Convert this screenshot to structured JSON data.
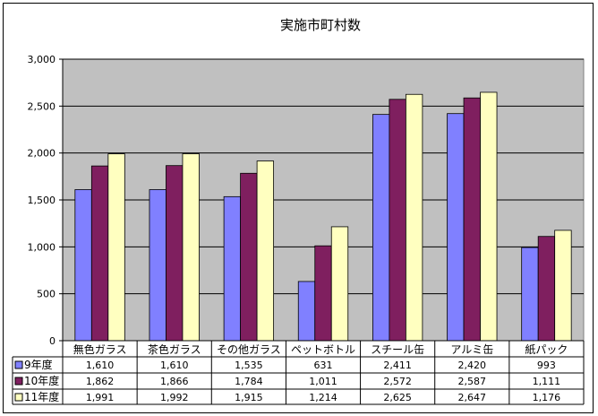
{
  "chart_data": {
    "type": "bar",
    "title": "実施市町村数",
    "categories": [
      "無色ガラス",
      "茶色ガラス",
      "その他ガラス",
      "ペットボトル",
      "スチール缶",
      "アルミ缶",
      "紙パック"
    ],
    "series": [
      {
        "name": "9年度",
        "color": "#8080FF",
        "values": [
          1610,
          1610,
          1535,
          631,
          2411,
          2420,
          993
        ],
        "labels": [
          "1,610",
          "1,610",
          "1,535",
          "631",
          "2,411",
          "2,420",
          "993"
        ]
      },
      {
        "name": "10年度",
        "color": "#7F1F5F",
        "values": [
          1862,
          1866,
          1784,
          1011,
          2572,
          2587,
          1111
        ],
        "labels": [
          "1,862",
          "1,866",
          "1,784",
          "1,011",
          "2,572",
          "2,587",
          "1,111"
        ]
      },
      {
        "name": "11年度",
        "color": "#FFFFC0",
        "values": [
          1991,
          1992,
          1915,
          1214,
          2625,
          2647,
          1176
        ],
        "labels": [
          "1,991",
          "1,992",
          "1,915",
          "1,214",
          "2,625",
          "2,647",
          "1,176"
        ]
      }
    ],
    "ylim": [
      0,
      3000
    ],
    "yticks": [
      0,
      500,
      1000,
      1500,
      2000,
      2500,
      3000
    ],
    "ytick_labels": [
      "0",
      "500",
      "1,000",
      "1,500",
      "2,000",
      "2,500",
      "3,000"
    ],
    "grid": true,
    "legend": "data-table",
    "plot_bg": "#C0C0C0"
  }
}
